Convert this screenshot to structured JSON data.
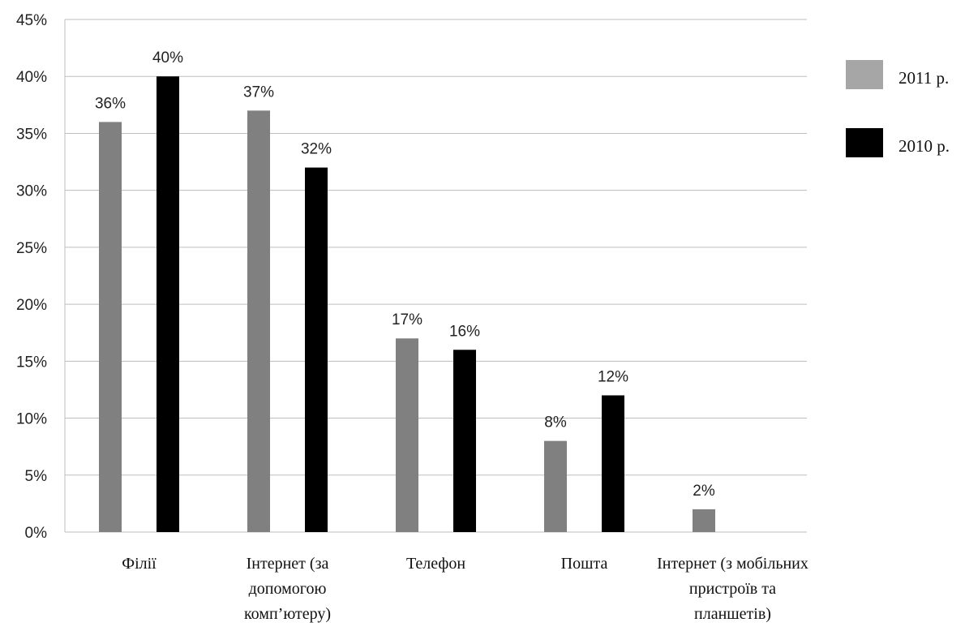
{
  "chart_data": {
    "type": "bar",
    "categories": [
      [
        "Філії"
      ],
      [
        "Інтернет (за",
        "допомогою",
        "комп’ютеру)"
      ],
      [
        "Телефон"
      ],
      [
        "Пошта"
      ],
      [
        "Інтернет (з мобільних",
        "пристроїв та",
        "планшетів)"
      ]
    ],
    "series": [
      {
        "name": "2011 р.",
        "color": "#808080",
        "values": [
          36,
          37,
          17,
          8,
          2
        ],
        "labels": [
          "36%",
          "37%",
          "17%",
          "8%",
          "2%"
        ]
      },
      {
        "name": "2010 р.",
        "color": "#000000",
        "values": [
          40,
          32,
          16,
          12,
          null
        ],
        "labels": [
          "40%",
          "32%",
          "16%",
          "12%",
          ""
        ]
      }
    ],
    "ylim": [
      0,
      45
    ],
    "yticks": [
      "0%",
      "5%",
      "10%",
      "15%",
      "20%",
      "25%",
      "30%",
      "35%",
      "40%",
      "45%"
    ],
    "grid": true,
    "legend_position": "right"
  }
}
